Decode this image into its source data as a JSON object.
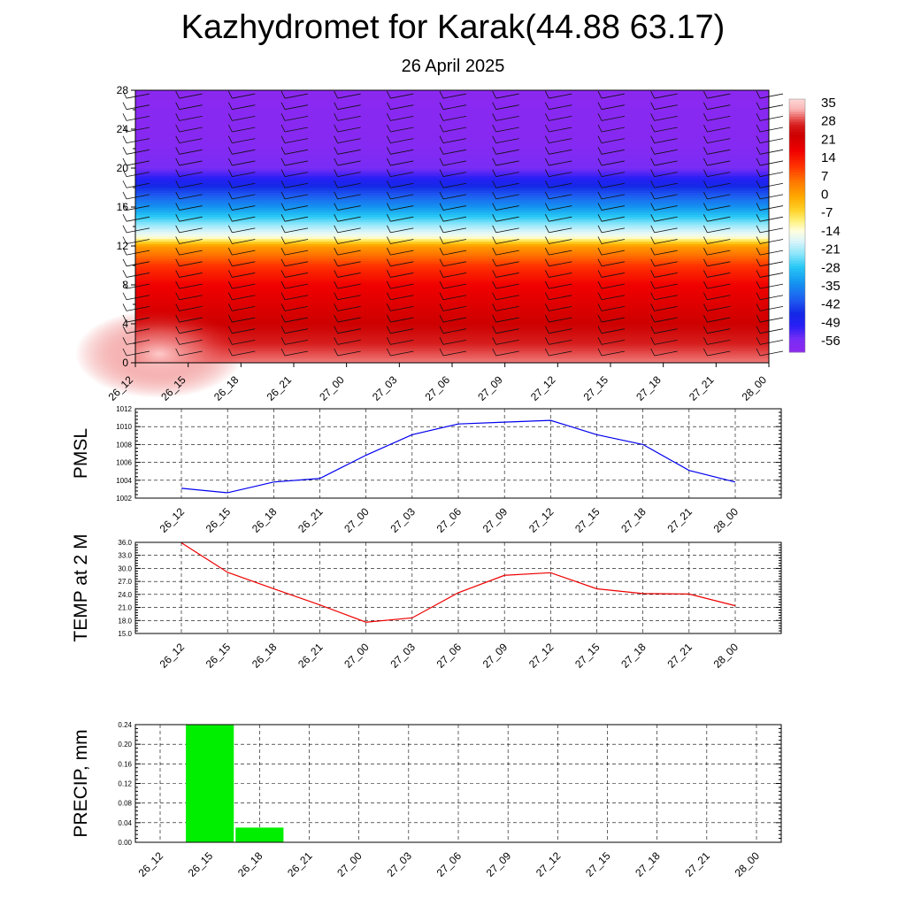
{
  "title": "Kazhydromet for Karak(44.88 63.17)",
  "subtitle": "26 April 2025",
  "time_labels": [
    "26_12",
    "26_15",
    "26_18",
    "26_21",
    "27_00",
    "27_03",
    "27_06",
    "27_09",
    "27_12",
    "27_15",
    "27_18",
    "27_21",
    "28_00"
  ],
  "chart_data": [
    {
      "type": "heatmap",
      "title": "Kazhydromet for Karak(44.88 63.17)",
      "subtitle": "26 April 2025",
      "x": [
        "26_12",
        "26_15",
        "26_18",
        "26_21",
        "27_00",
        "27_03",
        "27_06",
        "27_09",
        "27_12",
        "27_15",
        "27_18",
        "27_21",
        "28_00"
      ],
      "ylim": [
        0,
        28
      ],
      "yticks": [
        0,
        4,
        8,
        12,
        16,
        20,
        24,
        28
      ],
      "colorbar": {
        "labels": [
          "35",
          "28",
          "21",
          "14",
          "7",
          "0",
          "-7",
          "-14",
          "-21",
          "-28",
          "-35",
          "-42",
          "-49",
          "-56"
        ],
        "range": [
          -60,
          38
        ]
      },
      "temperature_profile": {
        "levels": [
          0,
          2,
          4,
          6,
          8,
          10,
          12,
          13,
          14,
          16,
          18,
          19,
          20,
          22,
          24,
          26,
          28
        ],
        "values": [
          32,
          28,
          24,
          21,
          18,
          12,
          2,
          -14,
          -20,
          -33,
          -44,
          -50,
          -55,
          -58,
          -59,
          -59,
          -60
        ]
      },
      "wind_barbs": true
    },
    {
      "type": "line",
      "ylabel": "PMSL",
      "x": [
        "26_12",
        "26_15",
        "26_18",
        "26_21",
        "27_00",
        "27_03",
        "27_06",
        "27_09",
        "27_12",
        "27_15",
        "27_18",
        "27_21",
        "28_00"
      ],
      "series": [
        {
          "values": [
            1003.1,
            1002.6,
            1003.8,
            1004.2,
            1006.8,
            1009.1,
            1010.3,
            1010.5,
            1010.7,
            1009.1,
            1008.0,
            1005.1,
            1003.8
          ],
          "color": "#0000ee"
        }
      ],
      "ylim": [
        1002,
        1012
      ],
      "yticks": [
        "1002",
        "1004",
        "1006",
        "1008",
        "1010",
        "1012"
      ],
      "grid": true
    },
    {
      "type": "line",
      "ylabel": "TEMP at 2 M",
      "x": [
        "26_12",
        "26_15",
        "26_18",
        "26_21",
        "27_00",
        "27_03",
        "27_06",
        "27_09",
        "27_12",
        "27_15",
        "27_18",
        "27_21",
        "28_00"
      ],
      "series": [
        {
          "values": [
            35.9,
            29.1,
            25.3,
            21.6,
            17.6,
            18.6,
            24.4,
            28.4,
            29.0,
            25.3,
            24.2,
            24.1,
            21.4
          ],
          "color": "#ee0000"
        }
      ],
      "ylim": [
        15,
        36
      ],
      "yticks": [
        "15.0",
        "18.0",
        "21.0",
        "24.0",
        "27.0",
        "30.0",
        "33.0",
        "36.0"
      ],
      "grid": true
    },
    {
      "type": "bar",
      "ylabel": "PRECIP, mm",
      "categories": [
        "26_12",
        "26_15",
        "26_18",
        "26_21",
        "27_00",
        "27_03",
        "27_06",
        "27_09",
        "27_12",
        "27_15",
        "27_18",
        "27_21",
        "28_00"
      ],
      "values": [
        0,
        0.24,
        0.03,
        0,
        0,
        0,
        0,
        0,
        0,
        0,
        0,
        0,
        0
      ],
      "color": "#00ee00",
      "ylim": [
        0,
        0.24
      ],
      "yticks": [
        "0.00",
        "0.04",
        "0.08",
        "0.12",
        "0.16",
        "0.20",
        "0.24"
      ],
      "grid": true
    }
  ]
}
